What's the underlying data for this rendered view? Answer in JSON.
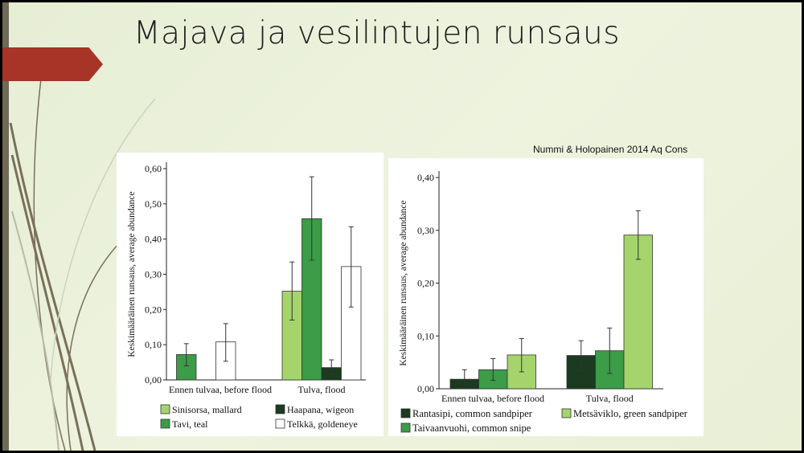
{
  "slide": {
    "title": "Majava ja vesilintujen runsaus",
    "citation": "Nummi & Holopainen 2014 Aq Cons",
    "colors": {
      "accent_arrow": "#a83428",
      "side_bar": "#6e6a56"
    }
  },
  "chart_data": [
    {
      "type": "bar",
      "title": "",
      "xlabel": "",
      "ylabel": "Keskimääräinen runsaus, average abundance",
      "ylim": [
        0,
        0.6
      ],
      "yticks": [
        "0,00",
        "0,10",
        "0,20",
        "0,30",
        "0,40",
        "0,50",
        "0,60"
      ],
      "categories": [
        "Ennen tulvaa, before flood",
        "Tulva, flood"
      ],
      "legend_position": "bottom",
      "series": [
        {
          "name": "Sinisorsa, mallard",
          "color": "#a6d46c",
          "values": [
            0.0,
            0.252
          ],
          "err_low": [
            0.0,
            0.17
          ],
          "err_high": [
            0.0,
            0.335
          ]
        },
        {
          "name": "Tavi, teal",
          "color": "#3c9c48",
          "values": [
            0.072,
            0.458
          ],
          "err_low": [
            0.04,
            0.34
          ],
          "err_high": [
            0.103,
            0.577
          ]
        },
        {
          "name": "Haapana, wigeon",
          "color": "#1b3a20",
          "values": [
            0.0,
            0.035
          ],
          "err_low": [
            0.0,
            0.015
          ],
          "err_high": [
            0.0,
            0.057
          ]
        },
        {
          "name": "Telkkä, goldeneye",
          "color": "#ffffff",
          "values": [
            0.108,
            0.322
          ],
          "err_low": [
            0.053,
            0.207
          ],
          "err_high": [
            0.16,
            0.435
          ]
        }
      ],
      "legend_order": [
        0,
        2,
        1,
        3
      ]
    },
    {
      "type": "bar",
      "title": "",
      "xlabel": "",
      "ylabel": "Keskimääräinen runsaus, average abundance",
      "ylim": [
        0,
        0.4
      ],
      "yticks": [
        "0,00",
        "0,10",
        "0,20",
        "0,30",
        "0,40"
      ],
      "categories": [
        "Ennen tulvaa, before flood",
        "Tulva, flood"
      ],
      "legend_position": "bottom",
      "series": [
        {
          "name": "Rantasipi, common sandpiper",
          "color": "#1b3a20",
          "values": [
            0.018,
            0.063
          ],
          "err_low": [
            0.0,
            0.035
          ],
          "err_high": [
            0.036,
            0.091
          ]
        },
        {
          "name": "Taivaanvuohi, common snipe",
          "color": "#3c9c48",
          "values": [
            0.036,
            0.072
          ],
          "err_low": [
            0.016,
            0.029
          ],
          "err_high": [
            0.057,
            0.115
          ]
        },
        {
          "name": "Metsäviklo, green sandpiper",
          "color": "#a6d46c",
          "values": [
            0.064,
            0.291
          ],
          "err_low": [
            0.032,
            0.245
          ],
          "err_high": [
            0.095,
            0.337
          ]
        }
      ],
      "legend_order": [
        0,
        2,
        1
      ]
    }
  ]
}
